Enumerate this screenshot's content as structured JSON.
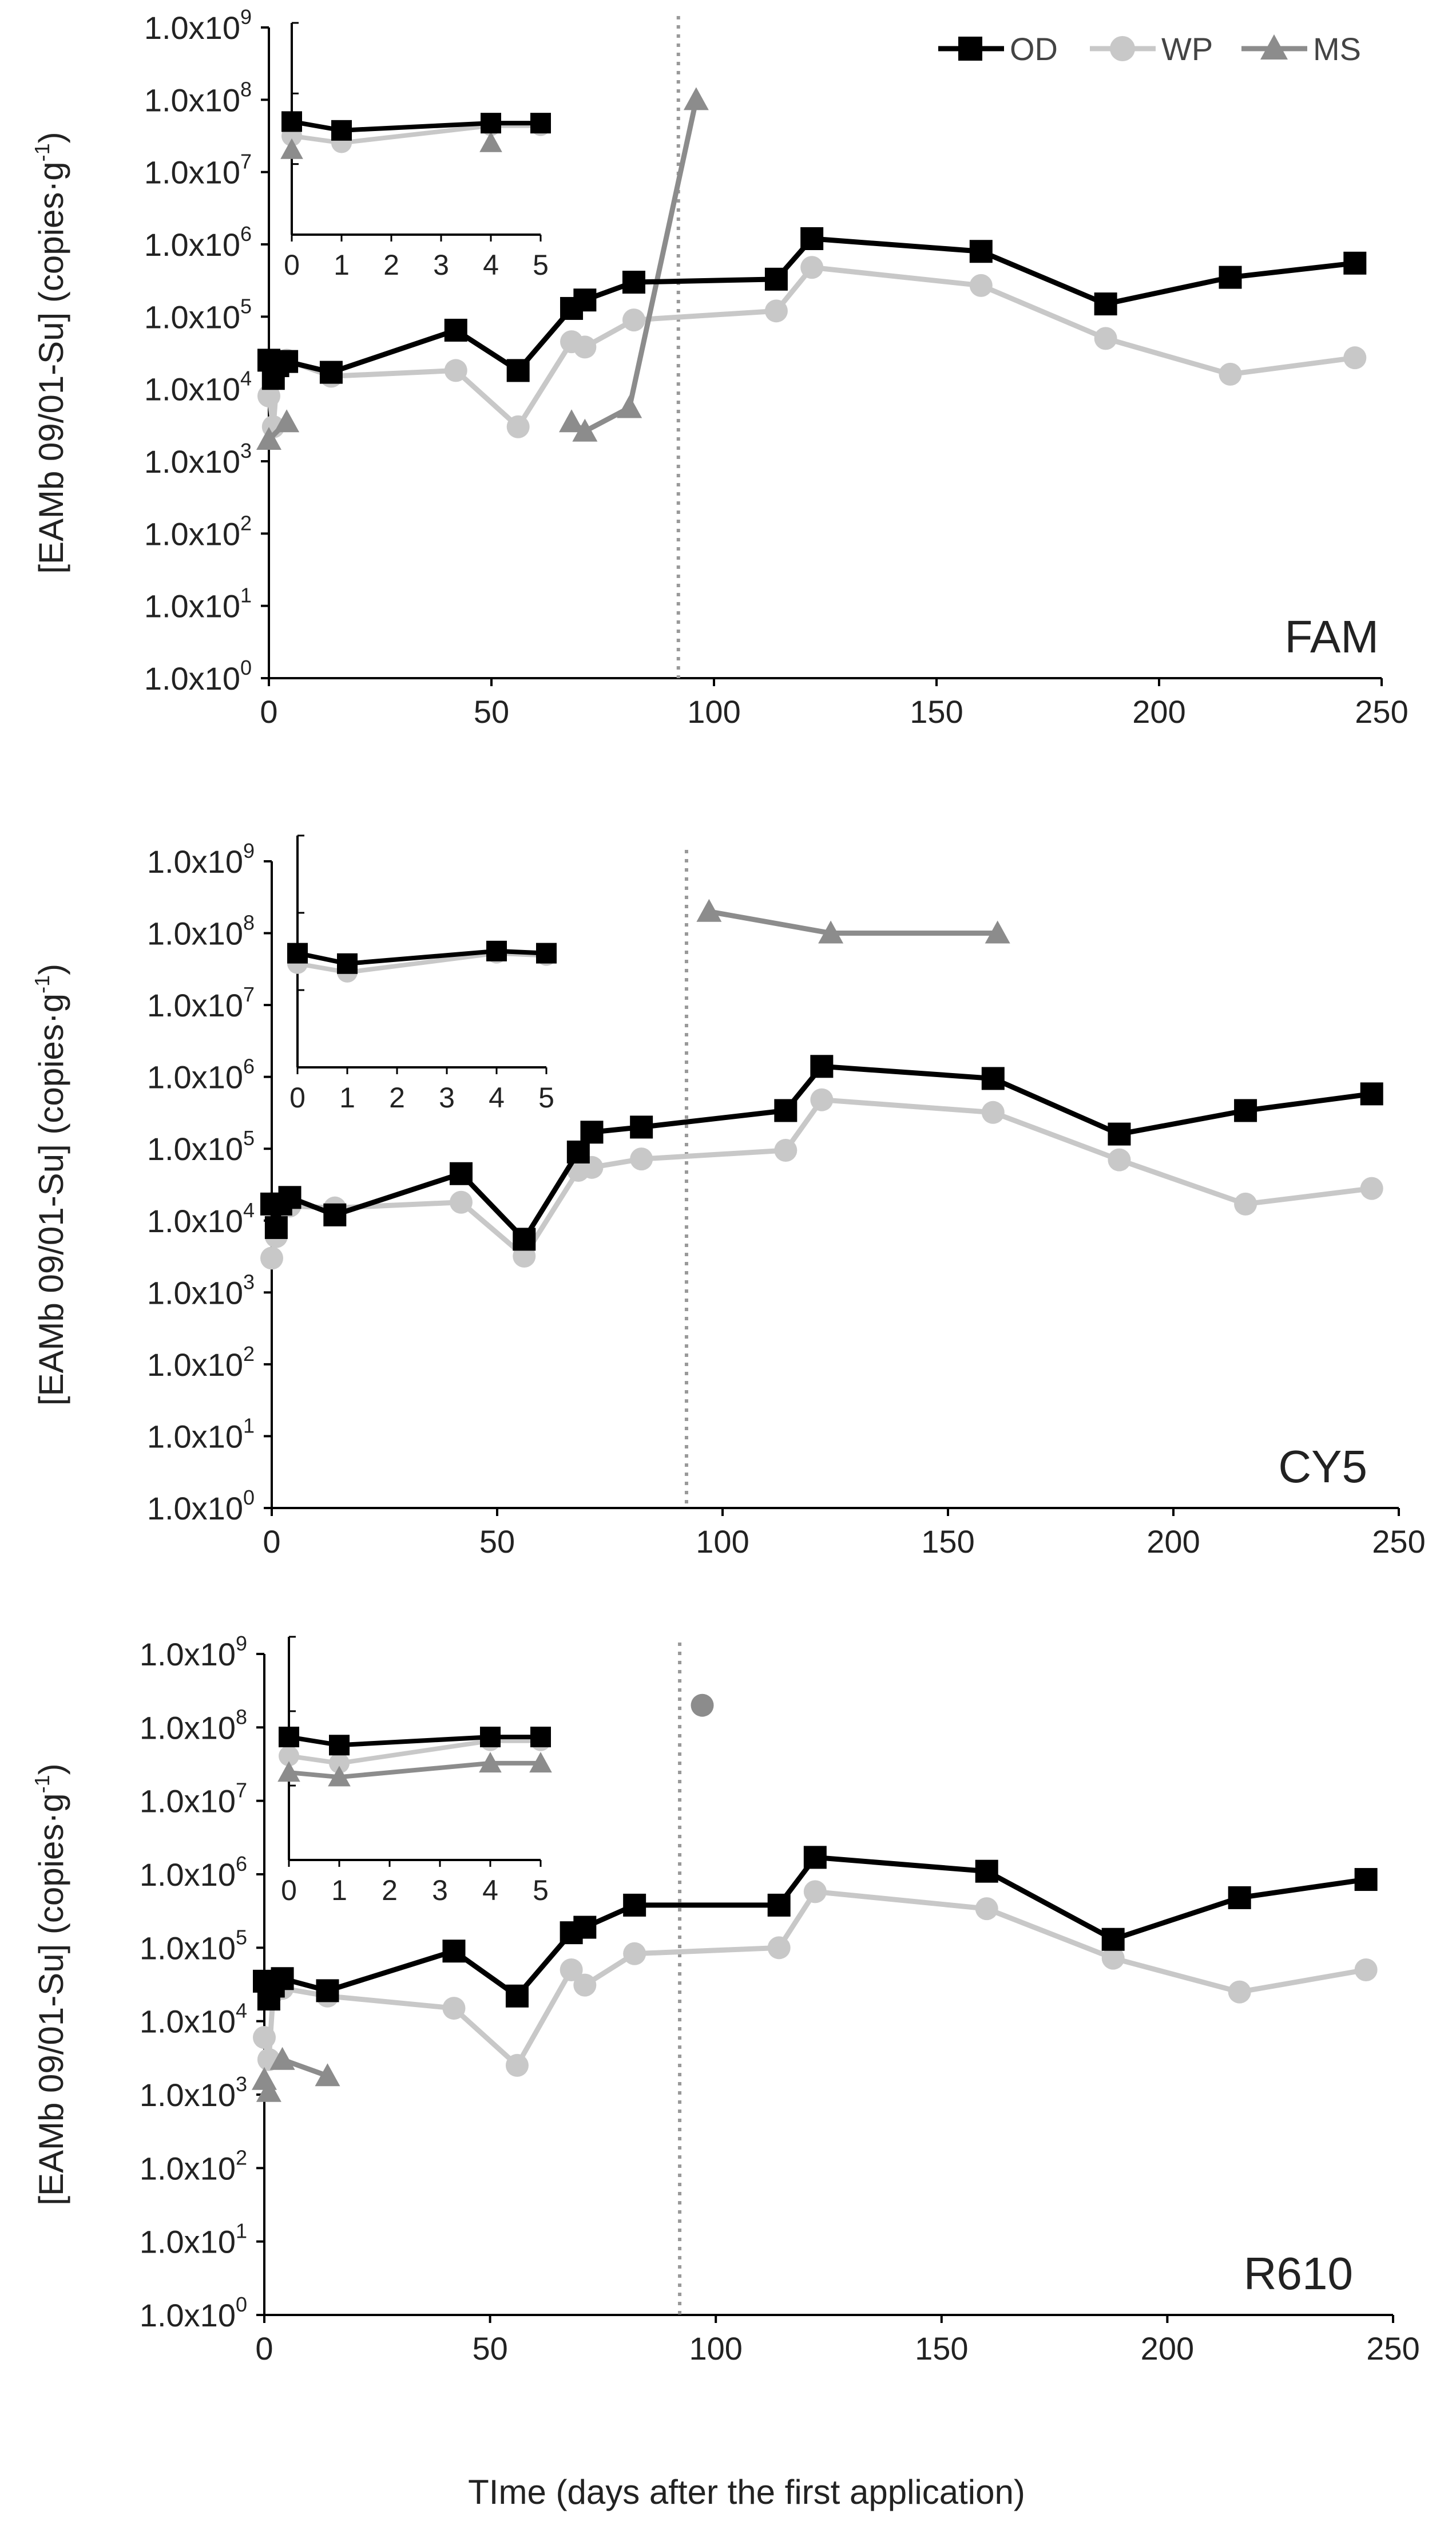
{
  "figure": {
    "shared_xlabel": "TIme (days after the first application)"
  },
  "legend": [
    {
      "name": "OD",
      "color": "#000000",
      "marker": "square"
    },
    {
      "name": "WP",
      "color": "#c8c8c8",
      "marker": "circle"
    },
    {
      "name": "MS",
      "color": "#8c8c8c",
      "marker": "triangle"
    }
  ],
  "chart_data": [
    {
      "type": "line",
      "label": "FAM",
      "ylabel": "[EAMb 09/01-Su] (copies·g⁻¹)",
      "ylabel_parts": {
        "main": "[EAMb 09/01-Su] (copies·g",
        "sup": "-1",
        "end": ")"
      },
      "yscale": "log",
      "xlim": [
        0,
        250
      ],
      "ylim": [
        1,
        1000000000
      ],
      "xticks": [
        "0",
        "50",
        "100",
        "150",
        "200",
        "250"
      ],
      "yticks": [
        {
          "mant": "1.0x10",
          "exp": "0",
          "value": 1
        },
        {
          "mant": "1.0x10",
          "exp": "1",
          "value": 10
        },
        {
          "mant": "1.0x10",
          "exp": "2",
          "value": 100
        },
        {
          "mant": "1.0x10",
          "exp": "3",
          "value": 1000
        },
        {
          "mant": "1.0x10",
          "exp": "4",
          "value": 10000
        },
        {
          "mant": "1.0x10",
          "exp": "5",
          "value": 100000
        },
        {
          "mant": "1.0x10",
          "exp": "6",
          "value": 1000000
        },
        {
          "mant": "1.0x10",
          "exp": "7",
          "value": 10000000
        },
        {
          "mant": "1.0x10",
          "exp": "8",
          "value": 100000000
        },
        {
          "mant": "1.0x10",
          "exp": "9",
          "value": 1000000000
        }
      ],
      "vline_x": 92,
      "series": [
        {
          "name": "OD",
          "x": [
            0,
            1,
            2,
            4,
            14,
            42,
            56,
            68,
            71,
            82,
            114,
            122,
            160,
            188,
            216,
            244
          ],
          "y": [
            25000,
            14000,
            21000,
            24000,
            17000,
            65000,
            18000,
            130000,
            170000,
            300000,
            330000,
            1200000,
            800000,
            150000,
            350000,
            550000
          ]
        },
        {
          "name": "WP",
          "x": [
            0,
            1,
            2,
            4,
            14,
            42,
            56,
            68,
            71,
            82,
            114,
            122,
            160,
            188,
            216,
            244
          ],
          "y": [
            8000,
            3000,
            20000,
            25000,
            15000,
            18000,
            3000,
            45000,
            38000,
            90000,
            120000,
            480000,
            270000,
            50000,
            16000,
            27000
          ]
        },
        {
          "name": "MS",
          "segments": [
            {
              "x": [
                0,
                4
              ],
              "y": [
                2000,
                3500
              ]
            },
            {
              "x": [
                68,
                71,
                81,
                96
              ],
              "y": [
                3500,
                2600,
                5500,
                100000000
              ]
            }
          ]
        }
      ],
      "inset": {
        "xlim": [
          0,
          5
        ],
        "ylim": [
          1000000,
          1000000000
        ],
        "xticks": [
          "0",
          "1",
          "2",
          "3",
          "4",
          "5"
        ],
        "series": [
          {
            "name": "OD",
            "x": [
              0,
              1,
              4,
              5
            ],
            "y": [
              40000000,
              30000000,
              38000000,
              38000000
            ]
          },
          {
            "name": "WP",
            "x": [
              0,
              1,
              4,
              5
            ],
            "y": [
              25000000,
              20000000,
              35000000,
              35000000
            ]
          },
          {
            "name": "MS",
            "x": [
              0,
              4
            ],
            "y": [
              16000000,
              20000000
            ],
            "markers_only": true
          }
        ]
      }
    },
    {
      "type": "line",
      "label": "CY5",
      "ylabel": "[EAMb 09/01-Su] (copies·g⁻¹)",
      "ylabel_parts": {
        "main": "[EAMb 09/01-Su] (copies·g",
        "sup": "-1",
        "end": ")"
      },
      "yscale": "log",
      "xlim": [
        0,
        250
      ],
      "ylim": [
        1,
        1000000000
      ],
      "xticks": [
        "0",
        "50",
        "100",
        "150",
        "200",
        "250"
      ],
      "yticks": [
        {
          "mant": "1.0x10",
          "exp": "0",
          "value": 1
        },
        {
          "mant": "1.0x10",
          "exp": "1",
          "value": 10
        },
        {
          "mant": "1.0x10",
          "exp": "2",
          "value": 100
        },
        {
          "mant": "1.0x10",
          "exp": "3",
          "value": 1000
        },
        {
          "mant": "1.0x10",
          "exp": "4",
          "value": 10000
        },
        {
          "mant": "1.0x10",
          "exp": "5",
          "value": 100000
        },
        {
          "mant": "1.0x10",
          "exp": "6",
          "value": 1000000
        },
        {
          "mant": "1.0x10",
          "exp": "7",
          "value": 10000000
        },
        {
          "mant": "1.0x10",
          "exp": "8",
          "value": 100000000
        },
        {
          "mant": "1.0x10",
          "exp": "9",
          "value": 1000000000
        }
      ],
      "vline_x": 92,
      "series": [
        {
          "name": "OD",
          "x": [
            0,
            1,
            2,
            4,
            14,
            42,
            56,
            68,
            71,
            82,
            114,
            122,
            160,
            188,
            216,
            244
          ],
          "y": [
            17000,
            8000,
            17000,
            21000,
            12000,
            45000,
            5500,
            90000,
            170000,
            200000,
            340000,
            1400000,
            950000,
            160000,
            340000,
            580000
          ]
        },
        {
          "name": "WP",
          "x": [
            0,
            1,
            2,
            4,
            14,
            42,
            56,
            68,
            71,
            82,
            114,
            122,
            160,
            188,
            216,
            244
          ],
          "y": [
            3000,
            6000,
            15000,
            16000,
            15000,
            18000,
            3200,
            50000,
            55000,
            72000,
            95000,
            480000,
            320000,
            70000,
            17000,
            28000
          ]
        },
        {
          "name": "MS",
          "segments": [
            {
              "x": [
                97,
                124,
                161
              ],
              "y": [
                200000000,
                100000000,
                100000000
              ]
            }
          ]
        }
      ],
      "inset": {
        "xlim": [
          0,
          5
        ],
        "ylim": [
          1000000,
          1000000000
        ],
        "xticks": [
          "0",
          "1",
          "2",
          "3",
          "4",
          "5"
        ],
        "series": [
          {
            "name": "OD",
            "x": [
              0,
              1,
              4,
              5
            ],
            "y": [
              30000000,
              22000000,
              32000000,
              30000000
            ]
          },
          {
            "name": "WP",
            "x": [
              0,
              1,
              4,
              5
            ],
            "y": [
              22000000,
              17000000,
              30000000,
              28000000
            ]
          }
        ]
      }
    },
    {
      "type": "line",
      "label": "R610",
      "ylabel": "[EAMb 09/01-Su] (copies·g⁻¹)",
      "ylabel_parts": {
        "main": "[EAMb 09/01-Su] (copies·g",
        "sup": "-1",
        "end": ")"
      },
      "yscale": "log",
      "xlim": [
        0,
        250
      ],
      "ylim": [
        1,
        1000000000
      ],
      "xticks": [
        "0",
        "50",
        "100",
        "150",
        "200",
        "250"
      ],
      "yticks": [
        {
          "mant": "1.0x10",
          "exp": "0",
          "value": 1
        },
        {
          "mant": "1.0x10",
          "exp": "1",
          "value": 10
        },
        {
          "mant": "1.0x10",
          "exp": "2",
          "value": 100
        },
        {
          "mant": "1.0x10",
          "exp": "3",
          "value": 1000
        },
        {
          "mant": "1.0x10",
          "exp": "4",
          "value": 10000
        },
        {
          "mant": "1.0x10",
          "exp": "5",
          "value": 100000
        },
        {
          "mant": "1.0x10",
          "exp": "6",
          "value": 1000000
        },
        {
          "mant": "1.0x10",
          "exp": "7",
          "value": 10000000
        },
        {
          "mant": "1.0x10",
          "exp": "8",
          "value": 100000000
        },
        {
          "mant": "1.0x10",
          "exp": "9",
          "value": 1000000000
        }
      ],
      "vline_x": 92,
      "series": [
        {
          "name": "OD",
          "x": [
            0,
            1,
            2,
            4,
            14,
            42,
            56,
            68,
            71,
            82,
            114,
            122,
            160,
            188,
            216,
            244
          ],
          "y": [
            35000,
            20000,
            30000,
            38000,
            26000,
            90000,
            22000,
            160000,
            190000,
            380000,
            380000,
            1700000,
            1100000,
            130000,
            480000,
            850000
          ]
        },
        {
          "name": "WP",
          "x": [
            0,
            1,
            2,
            4,
            14,
            42,
            56,
            68,
            71,
            82,
            114,
            122,
            160,
            188,
            216,
            244
          ],
          "y": [
            6000,
            3000,
            25000,
            28000,
            22000,
            15000,
            2500,
            50000,
            31000,
            83000,
            100000,
            580000,
            340000,
            72000,
            25000,
            50000
          ]
        },
        {
          "name": "MS",
          "segments": [
            {
              "x": [
                0,
                1
              ],
              "y": [
                1600,
                1100
              ]
            },
            {
              "x": [
                4,
                14
              ],
              "y": [
                3000,
                1800
              ]
            }
          ]
        }
      ],
      "outlier": {
        "x": 97,
        "y": 200000000,
        "color": "#8c8c8c"
      },
      "inset": {
        "xlim": [
          0,
          5
        ],
        "ylim": [
          1000000,
          1000000000
        ],
        "xticks": [
          "0",
          "1",
          "2",
          "3",
          "4",
          "5"
        ],
        "series": [
          {
            "name": "OD",
            "x": [
              0,
              1,
              4,
              5
            ],
            "y": [
              45000000,
              35000000,
              45000000,
              45000000
            ]
          },
          {
            "name": "WP",
            "x": [
              0,
              1,
              4,
              5
            ],
            "y": [
              25000000,
              20000000,
              40000000,
              40000000
            ]
          },
          {
            "name": "MS",
            "x": [
              0,
              1,
              4,
              5
            ],
            "y": [
              15000000,
              13000000,
              20000000,
              20000000
            ]
          }
        ]
      }
    }
  ]
}
